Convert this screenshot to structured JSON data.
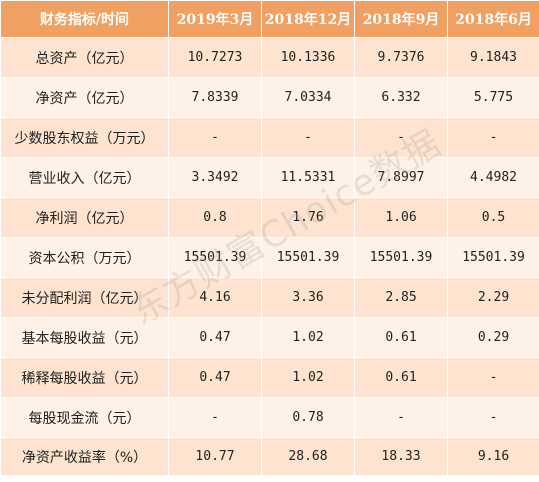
{
  "header": {
    "label": "财务指标/时间",
    "periods": [
      "2019年3月",
      "2018年12月",
      "2018年9月",
      "2018年6月"
    ]
  },
  "rows": [
    {
      "label": "总资产（亿元）",
      "values": [
        "10.7273",
        "10.1336",
        "9.7376",
        "9.1843"
      ]
    },
    {
      "label": "净资产（亿元）",
      "values": [
        "7.8339",
        "7.0334",
        "6.332",
        "5.775"
      ]
    },
    {
      "label": "少数股东权益（万元）",
      "values": [
        "-",
        "-",
        "-",
        "-"
      ]
    },
    {
      "label": "营业收入（亿元）",
      "values": [
        "3.3492",
        "11.5331",
        "7.8997",
        "4.4982"
      ]
    },
    {
      "label": "净利润（亿元）",
      "values": [
        "0.8",
        "1.76",
        "1.06",
        "0.5"
      ]
    },
    {
      "label": "资本公积（万元）",
      "values": [
        "15501.39",
        "15501.39",
        "15501.39",
        "15501.39"
      ]
    },
    {
      "label": "未分配利润（亿元）",
      "values": [
        "4.16",
        "3.36",
        "2.85",
        "2.29"
      ]
    },
    {
      "label": "基本每股收益（元）",
      "values": [
        "0.47",
        "1.02",
        "0.61",
        "0.29"
      ]
    },
    {
      "label": "稀释每股收益（元）",
      "values": [
        "0.47",
        "1.02",
        "0.61",
        "-"
      ]
    },
    {
      "label": "每股现金流（元）",
      "values": [
        "-",
        "0.78",
        "-",
        "-"
      ]
    },
    {
      "label": "净资产收益率（%）",
      "values": [
        "10.77",
        "28.68",
        "18.33",
        "9.16"
      ]
    }
  ],
  "watermark": "东方财富Choice数据",
  "colors": {
    "header_bg": "#f0a062",
    "row_odd": "#fde3d0",
    "row_even": "#fef1e8"
  }
}
